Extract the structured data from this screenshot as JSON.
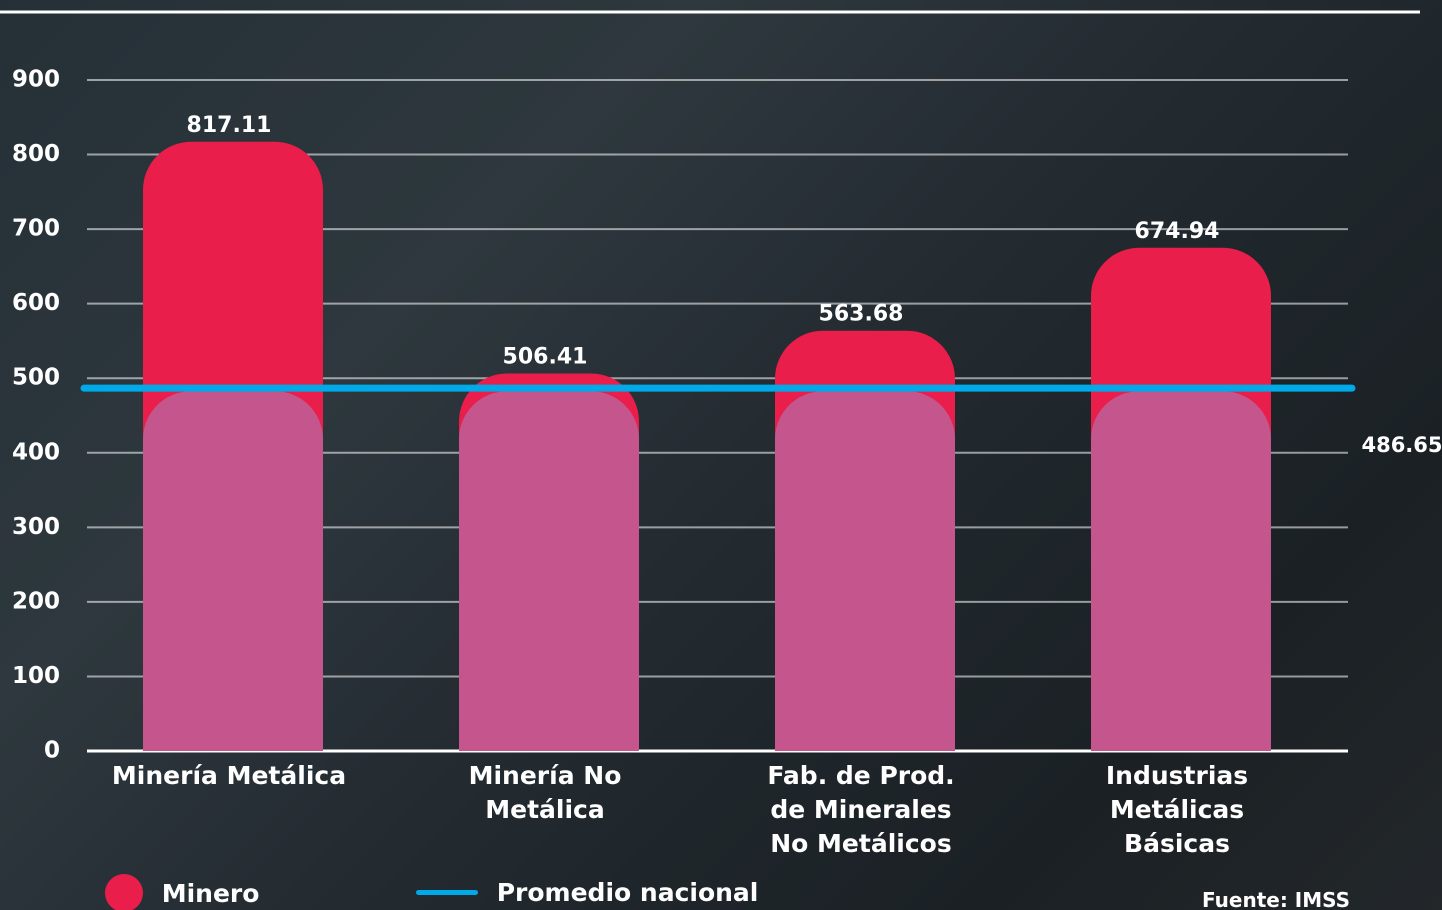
{
  "chart_data": {
    "type": "bar",
    "categories": [
      "Minería Metálica",
      "Minería No Metálica",
      "Fab. de Prod. de Minerales No Metálicos",
      "Industrias Metálicas Básicas"
    ],
    "series": [
      {
        "name": "Minero",
        "color": "#e91e4a",
        "values": [
          817.11,
          506.41,
          563.68,
          674.94
        ]
      },
      {
        "name": "Promedio nacional",
        "color": "#00a9e8",
        "value": 486.65
      }
    ],
    "ylim": [
      0,
      900
    ],
    "yticks": [
      0,
      100,
      200,
      300,
      400,
      500,
      600,
      700,
      800,
      900
    ],
    "grid": true,
    "source": "Fuente: IMSS"
  }
}
